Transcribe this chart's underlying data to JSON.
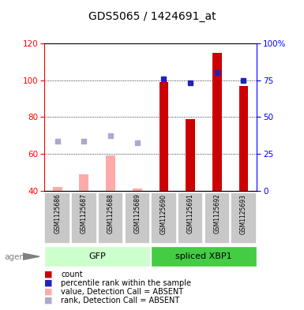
{
  "title": "GDS5065 / 1424691_at",
  "samples": [
    "GSM1125686",
    "GSM1125687",
    "GSM1125688",
    "GSM1125689",
    "GSM1125690",
    "GSM1125691",
    "GSM1125692",
    "GSM1125693"
  ],
  "groups": [
    {
      "label": "GFP",
      "indices": [
        0,
        1,
        2,
        3
      ],
      "color": "#ccffcc"
    },
    {
      "label": "spliced XBP1",
      "indices": [
        4,
        5,
        6,
        7
      ],
      "color": "#44cc44"
    }
  ],
  "red_bars": [
    null,
    null,
    null,
    null,
    99.0,
    79.0,
    115.0,
    97.0
  ],
  "blue_squares": [
    null,
    null,
    null,
    null,
    76.0,
    73.0,
    80.0,
    75.0
  ],
  "pink_bars": [
    42.0,
    49.0,
    59.0,
    41.0,
    null,
    null,
    null,
    null
  ],
  "lightblue_squares": [
    67.0,
    67.0,
    70.0,
    66.0,
    null,
    null,
    null,
    null
  ],
  "ylim_left": [
    40,
    120
  ],
  "ylim_right": [
    0,
    100
  ],
  "yticks_left": [
    40,
    60,
    80,
    100,
    120
  ],
  "yticks_right": [
    0,
    25,
    50,
    75,
    100
  ],
  "ytick_labels_right": [
    "0",
    "25",
    "50",
    "75",
    "100%"
  ],
  "red_color": "#cc0000",
  "blue_color": "#2222bb",
  "pink_color": "#ffaaaa",
  "lightblue_color": "#aaaacc",
  "bg_label": "#c8c8c8",
  "legend_items": [
    {
      "color": "#cc0000",
      "label": "count"
    },
    {
      "color": "#2222bb",
      "label": "percentile rank within the sample"
    },
    {
      "color": "#ffaaaa",
      "label": "value, Detection Call = ABSENT"
    },
    {
      "color": "#aaaacc",
      "label": "rank, Detection Call = ABSENT"
    }
  ]
}
